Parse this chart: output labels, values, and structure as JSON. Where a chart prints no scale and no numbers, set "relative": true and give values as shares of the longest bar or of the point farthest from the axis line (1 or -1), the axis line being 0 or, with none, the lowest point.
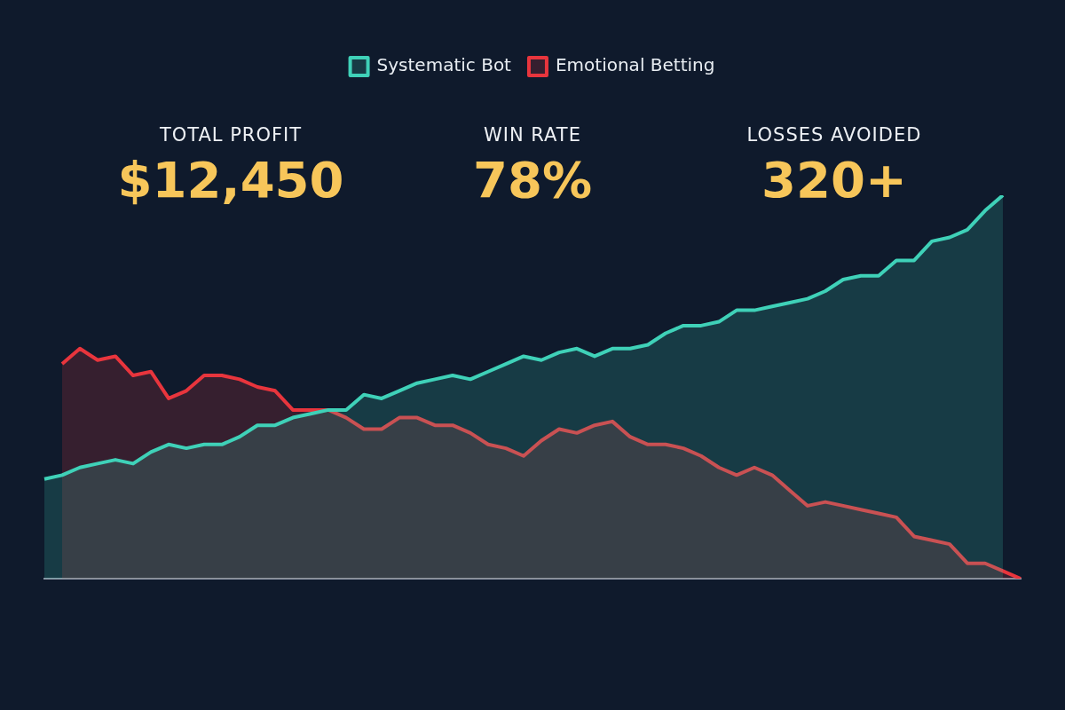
{
  "chart_data": {
    "type": "area",
    "relative": true,
    "legend": "top",
    "marker": "none",
    "annotations": [
      "TOTAL PROFIT",
      "$12,450",
      "WIN RATE",
      "78%",
      "LOSSES AVOIDED",
      "320+"
    ],
    "categories": [
      null,
      null,
      null,
      null,
      null,
      null,
      null,
      null,
      null,
      null,
      null,
      null,
      null,
      null,
      null,
      null,
      null,
      null,
      null,
      null,
      null,
      null,
      null,
      null,
      null,
      null,
      null,
      null,
      null,
      null,
      null,
      null,
      null,
      null,
      null,
      null,
      null,
      null,
      null,
      null,
      null,
      null,
      null,
      null,
      null,
      null,
      null,
      null,
      null,
      null,
      null,
      null,
      null,
      null,
      null,
      null
    ],
    "series": [
      {
        "name": "Systematic Bot",
        "color": "#3fd1b8",
        "values": [
          0.26,
          0.27,
          0.29,
          0.3,
          0.31,
          0.3,
          0.33,
          0.35,
          0.34,
          0.35,
          0.35,
          0.37,
          0.4,
          0.4,
          0.42,
          0.43,
          0.44,
          0.44,
          0.48,
          0.47,
          0.49,
          0.51,
          0.52,
          0.53,
          0.52,
          0.54,
          0.56,
          0.58,
          0.57,
          0.59,
          0.6,
          0.58,
          0.6,
          0.6,
          0.61,
          0.64,
          0.66,
          0.66,
          0.67,
          0.7,
          0.7,
          0.71,
          0.72,
          0.73,
          0.75,
          0.78,
          0.79,
          0.79,
          0.83,
          0.83,
          0.88,
          0.89,
          0.91,
          0.96,
          1.0,
          null
        ]
      },
      {
        "name": "Emotional Betting",
        "color": "#e8353d",
        "values": [
          null,
          0.56,
          0.6,
          0.57,
          0.58,
          0.53,
          0.54,
          0.47,
          0.49,
          0.53,
          0.53,
          0.52,
          0.5,
          0.49,
          0.44,
          0.44,
          0.44,
          0.42,
          0.39,
          0.39,
          0.42,
          0.42,
          0.4,
          0.4,
          0.38,
          0.35,
          0.34,
          0.32,
          0.36,
          0.39,
          0.38,
          0.4,
          0.41,
          0.37,
          0.35,
          0.35,
          0.34,
          0.32,
          0.29,
          0.27,
          0.29,
          0.27,
          0.23,
          0.19,
          0.2,
          0.19,
          0.18,
          0.17,
          0.16,
          0.11,
          0.1,
          0.09,
          0.04,
          0.04,
          0.02,
          0
        ]
      }
    ]
  }
}
